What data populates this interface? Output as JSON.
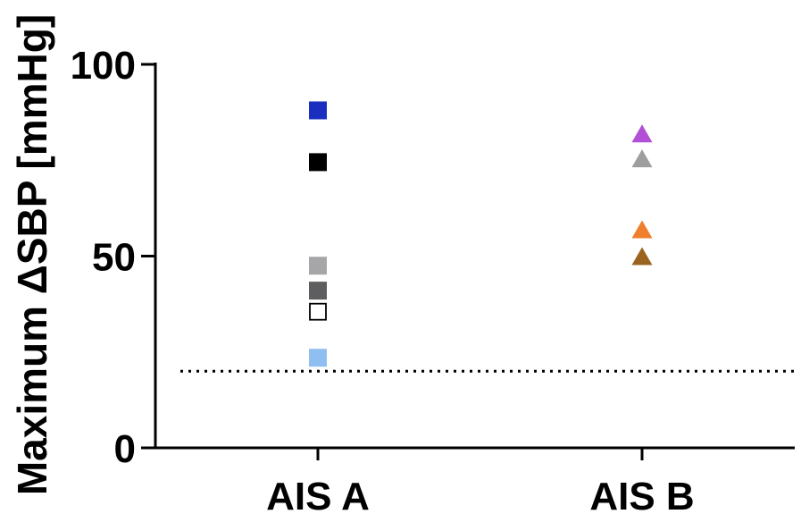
{
  "chart_data": {
    "type": "scatter",
    "categories": [
      "AIS A",
      "AIS B"
    ],
    "ylabel": "Maximum ΔSBP [mmHg]",
    "ylim": [
      0,
      100
    ],
    "yticks": [
      0,
      50,
      100
    ],
    "reference_line": {
      "y": 20,
      "style": "dotted"
    },
    "series": [
      {
        "category": "AIS A",
        "marker": "square",
        "points": [
          {
            "y": 88,
            "color": "#1a2fbf",
            "filled": true
          },
          {
            "y": 74.5,
            "color": "#000000",
            "filled": true
          },
          {
            "y": 47.5,
            "color": "#a6a6a8",
            "filled": true
          },
          {
            "y": 41,
            "color": "#5e5e60",
            "filled": true
          },
          {
            "y": 35.5,
            "color": "#000000",
            "filled": false
          },
          {
            "y": 23.5,
            "color": "#8fbff0",
            "filled": true
          }
        ]
      },
      {
        "category": "AIS B",
        "marker": "triangle",
        "points": [
          {
            "y": 82,
            "color": "#b14fd6",
            "filled": true
          },
          {
            "y": 75.5,
            "color": "#9e9e9e",
            "filled": true
          },
          {
            "y": 57,
            "color": "#ef7f2d",
            "filled": true
          },
          {
            "y": 50,
            "color": "#9a6420",
            "filled": true
          }
        ]
      }
    ]
  }
}
